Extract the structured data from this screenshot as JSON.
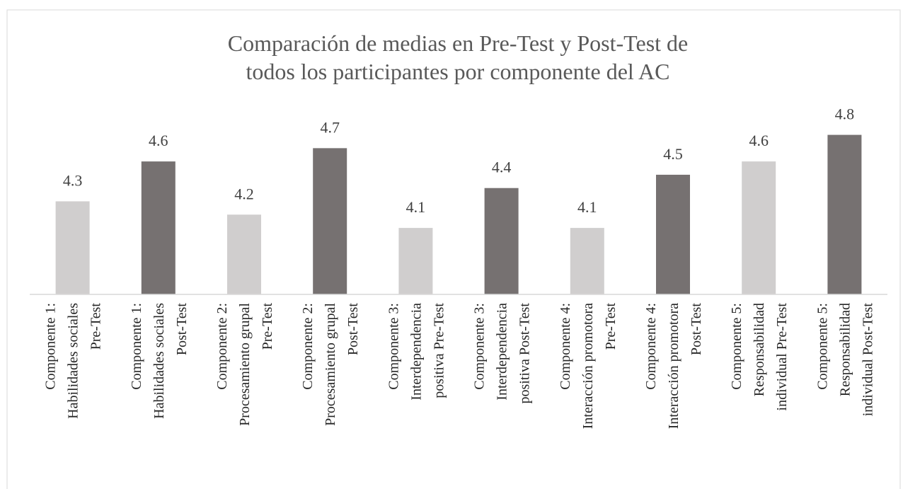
{
  "chart_data": {
    "type": "bar",
    "title": [
      "Comparación de medias en Pre-Test y Post-Test de",
      "todos los participantes por componente del AC"
    ],
    "categories": [
      [
        "Componente 1:",
        "Habilidades sociales",
        "Pre-Test"
      ],
      [
        "Componente 1:",
        "Habilidades sociales",
        "Post-Test"
      ],
      [
        "Componente 2:",
        "Procesamiento grupal",
        "Pre-Test"
      ],
      [
        "Componente 2:",
        "Procesamiento grupal",
        "Post-Test"
      ],
      [
        "Componente 3:",
        "Interdependencia",
        "positiva Pre-Test"
      ],
      [
        "Componente 3:",
        "Interdependencia",
        "positiva Post-Test"
      ],
      [
        "Componente 4:",
        "Interacción promotora",
        "Pre-Test"
      ],
      [
        "Componente 4:",
        "Interacción promotora",
        "Post-Test"
      ],
      [
        "Componente 5:",
        "Responsabilidad",
        "individual Pre-Test"
      ],
      [
        "Componente 5:",
        "Responsabilidad",
        "individual Post-Test"
      ]
    ],
    "values": [
      4.3,
      4.6,
      4.2,
      4.7,
      4.1,
      4.4,
      4.1,
      4.5,
      4.6,
      4.8
    ],
    "colors": [
      "#d0cece",
      "#767171",
      "#d0cece",
      "#767171",
      "#d0cece",
      "#767171",
      "#d0cece",
      "#767171",
      "#d0cece",
      "#767171"
    ],
    "ylim": [
      3.6,
      5.0
    ]
  }
}
